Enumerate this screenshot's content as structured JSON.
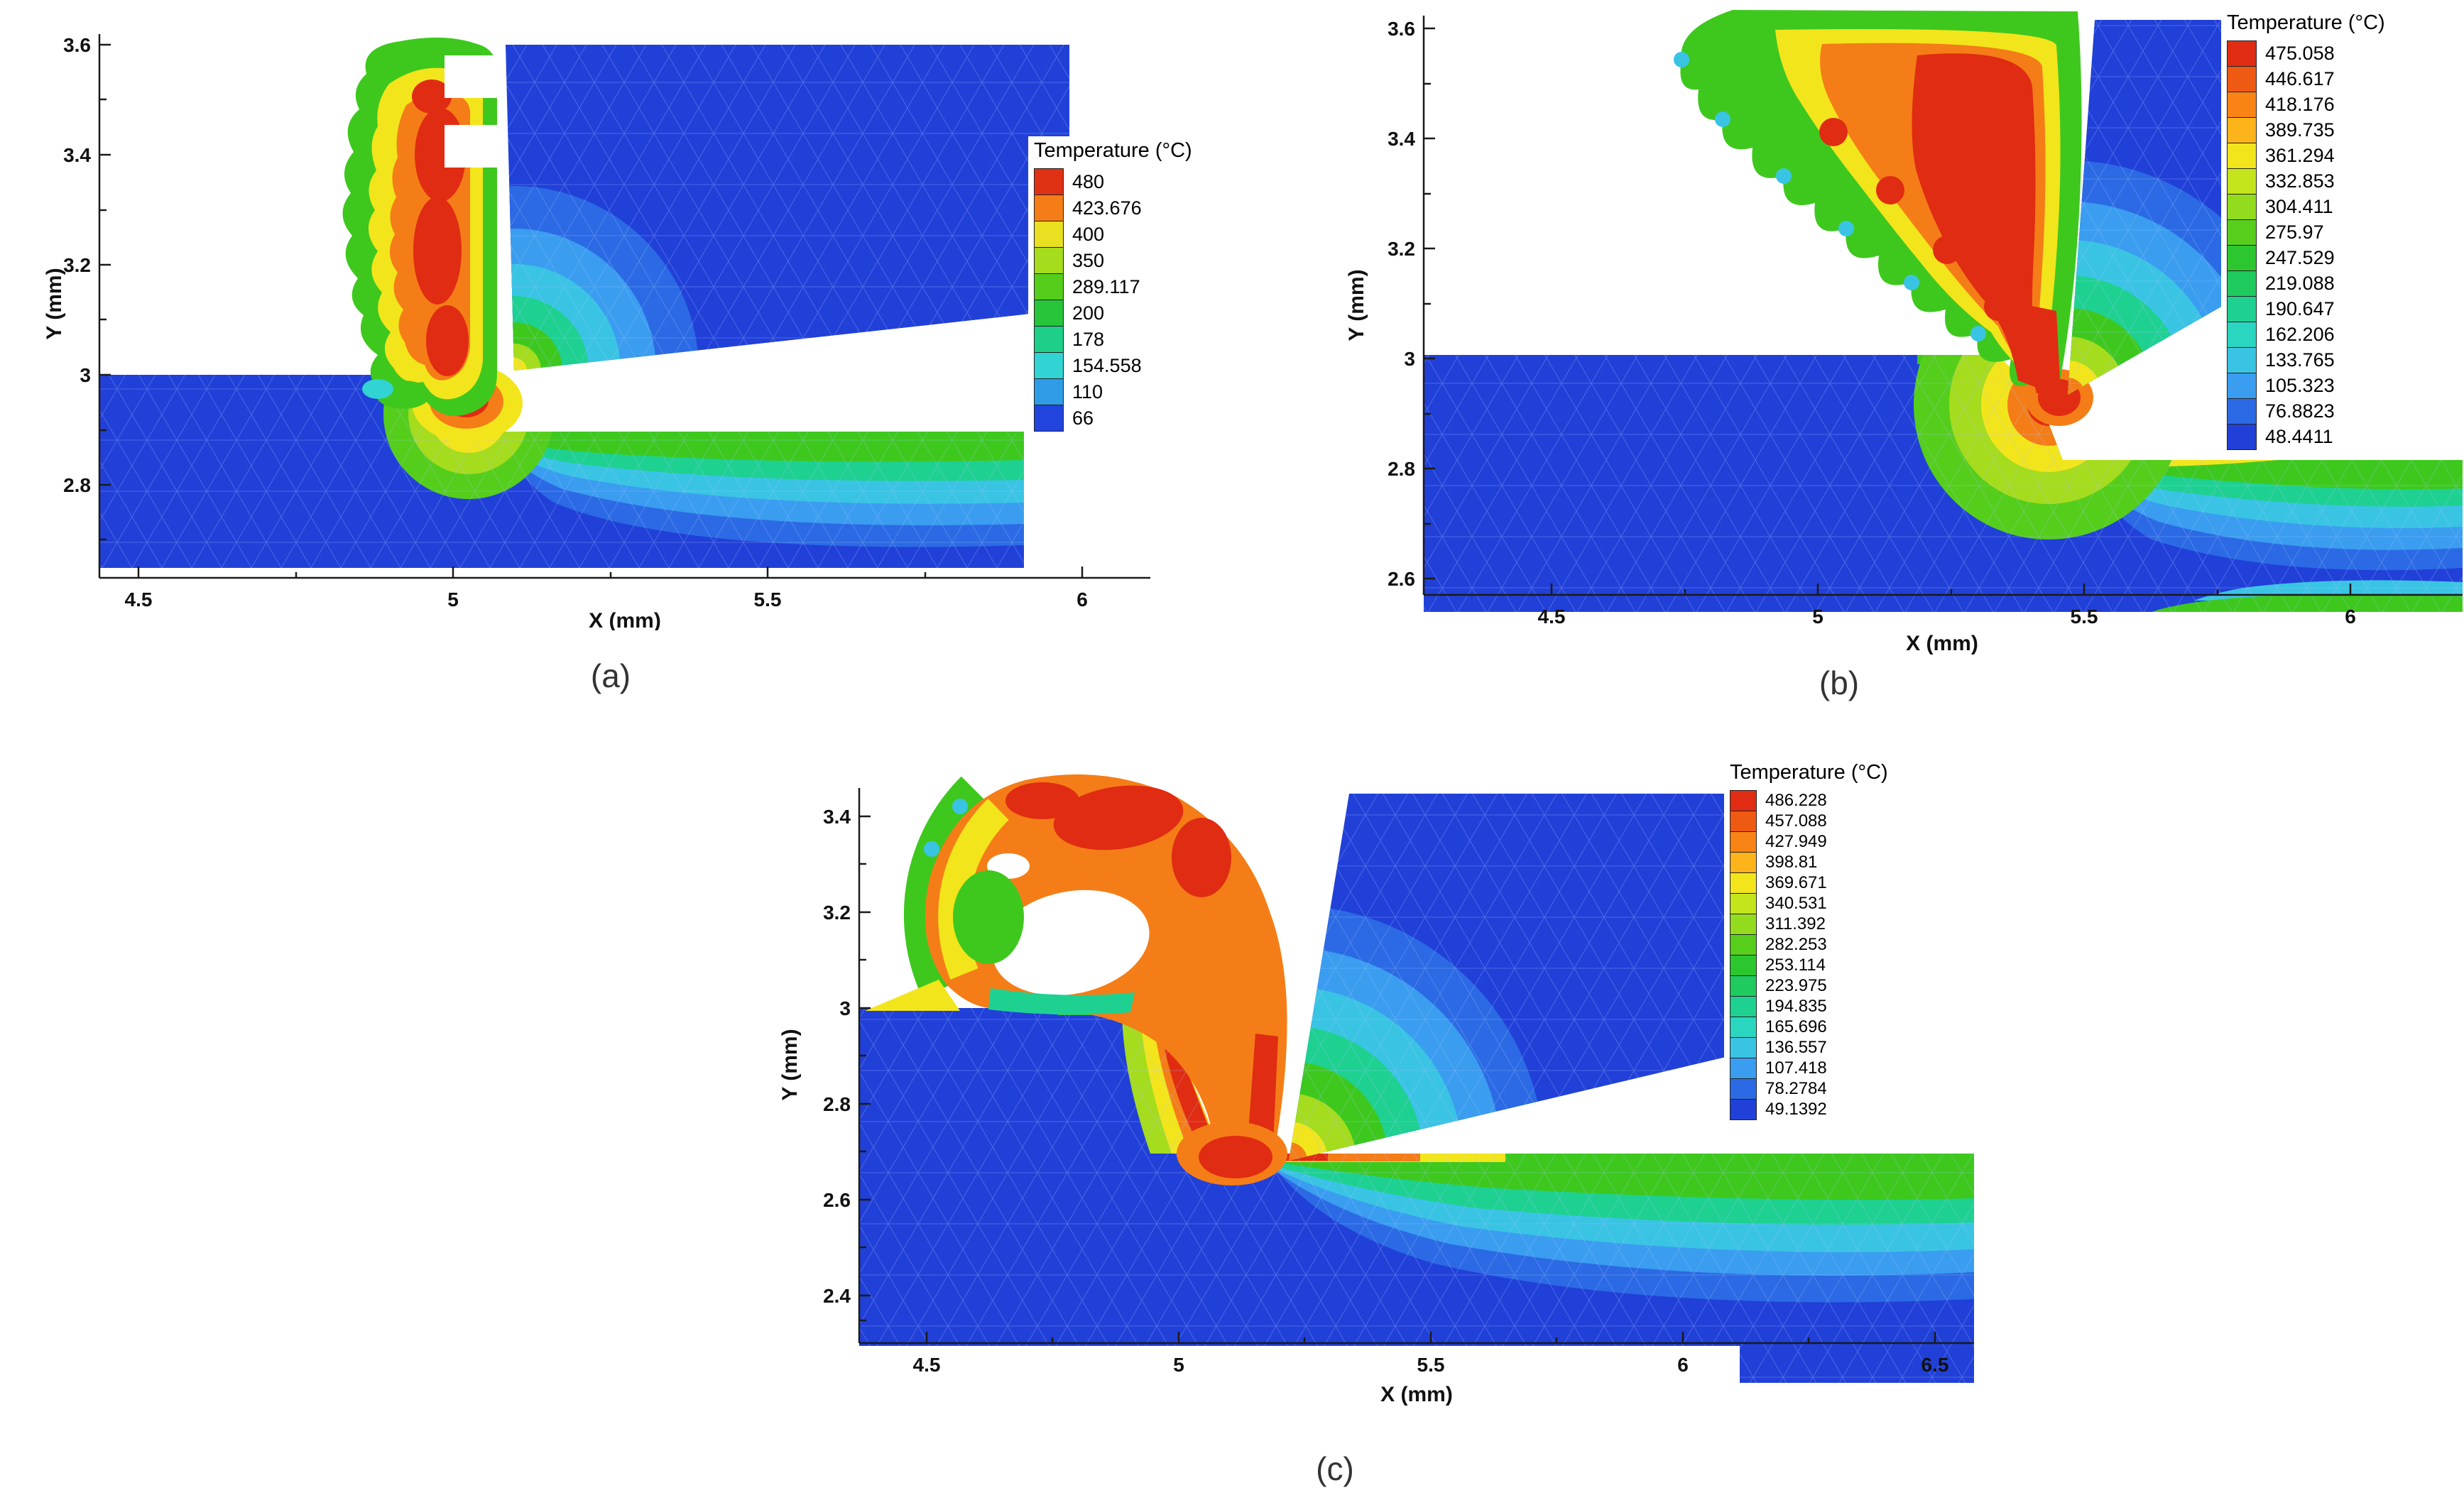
{
  "chart_data": [
    {
      "type": "heatmap",
      "subtype": "temperature-contour-machining-simulation",
      "caption": "(a)",
      "xlabel": "X (mm)",
      "ylabel": "Y (mm)",
      "x_ticks": [
        "4.5",
        "5",
        "5.5",
        "6"
      ],
      "y_ticks": [
        "3.6",
        "3.4",
        "3.2",
        "3",
        "2.8"
      ],
      "xlim": [
        4.4,
        6.1
      ],
      "ylim": [
        2.63,
        3.65
      ],
      "legend_title": "Temperature (°C)",
      "contour_levels_c": [
        480,
        423.676,
        400,
        350,
        289.117,
        200,
        178,
        154.558,
        110,
        66
      ],
      "legend_labels": [
        "480",
        "423.676",
        "400",
        "350",
        "289.117",
        "200",
        "178",
        "154.558",
        "110",
        "66"
      ],
      "palette": [
        "#e03114",
        "#f57d17",
        "#e8e020",
        "#a5dc1e",
        "#55ce1b",
        "#27c53a",
        "#1ecf87",
        "#31d4d3",
        "#2f9ce8",
        "#2144dc"
      ],
      "grid": false,
      "legend_position": "right"
    },
    {
      "type": "heatmap",
      "subtype": "temperature-contour-machining-simulation",
      "caption": "(b)",
      "xlabel": "X (mm)",
      "ylabel": "Y (mm)",
      "x_ticks": [
        "4.5",
        "5",
        "5.5",
        "6"
      ],
      "y_ticks": [
        "3.6",
        "3.4",
        "3.2",
        "3",
        "2.8",
        "2.6"
      ],
      "xlim": [
        4.26,
        6.2
      ],
      "ylim": [
        2.55,
        3.65
      ],
      "legend_title": "Temperature (°C)",
      "contour_levels_c": [
        475.058,
        446.617,
        418.176,
        389.735,
        361.294,
        332.853,
        304.411,
        275.97,
        247.529,
        219.088,
        190.647,
        162.206,
        133.765,
        105.323,
        76.8823,
        48.4411
      ],
      "legend_labels": [
        "475.058",
        "446.617",
        "418.176",
        "389.735",
        "361.294",
        "332.853",
        "304.411",
        "275.97",
        "247.529",
        "219.088",
        "190.647",
        "162.206",
        "133.765",
        "105.323",
        "76.8823",
        "48.4411"
      ],
      "palette": [
        "#e02c12",
        "#ef5a13",
        "#f98415",
        "#fdb31a",
        "#f2e51c",
        "#c4e41c",
        "#93dc1d",
        "#57ce1c",
        "#2cc72e",
        "#1fca5f",
        "#1ed191",
        "#2bd6c0",
        "#3ac4e4",
        "#3a9df0",
        "#2b6ae4",
        "#2140d8"
      ],
      "grid": false,
      "legend_position": "right"
    },
    {
      "type": "heatmap",
      "subtype": "temperature-contour-machining-simulation",
      "caption": "(c)",
      "xlabel": "X (mm)",
      "ylabel": "Y (mm)",
      "x_ticks": [
        "4.5",
        "5",
        "5.5",
        "6",
        "6.5"
      ],
      "y_ticks": [
        "3.4",
        "3.2",
        "3",
        "2.8",
        "2.6",
        "2.4"
      ],
      "xlim": [
        4.35,
        6.9
      ],
      "ylim": [
        2.3,
        3.52
      ],
      "legend_title": "Temperature (°C)",
      "contour_levels_c": [
        486.228,
        457.088,
        427.949,
        398.81,
        369.671,
        340.531,
        311.392,
        282.253,
        253.114,
        223.975,
        194.835,
        165.696,
        136.557,
        107.418,
        78.2784,
        49.1392
      ],
      "legend_labels": [
        "486.228",
        "457.088",
        "427.949",
        "398.81",
        "369.671",
        "340.531",
        "311.392",
        "282.253",
        "253.114",
        "223.975",
        "194.835",
        "165.696",
        "136.557",
        "107.418",
        "78.2784",
        "49.1392"
      ],
      "palette": [
        "#e02c12",
        "#ef5a13",
        "#f98415",
        "#fdb31a",
        "#f2e51c",
        "#c4e41c",
        "#93dc1d",
        "#57ce1c",
        "#2cc72e",
        "#1fca5f",
        "#1ed191",
        "#2bd6c0",
        "#3ac4e4",
        "#3a9df0",
        "#2b6ae4",
        "#2140d8"
      ],
      "grid": false,
      "legend_position": "right"
    }
  ],
  "colors": {
    "body_blue": "#2140d8",
    "hot_red": "#e02c12",
    "background": "#ffffff"
  }
}
